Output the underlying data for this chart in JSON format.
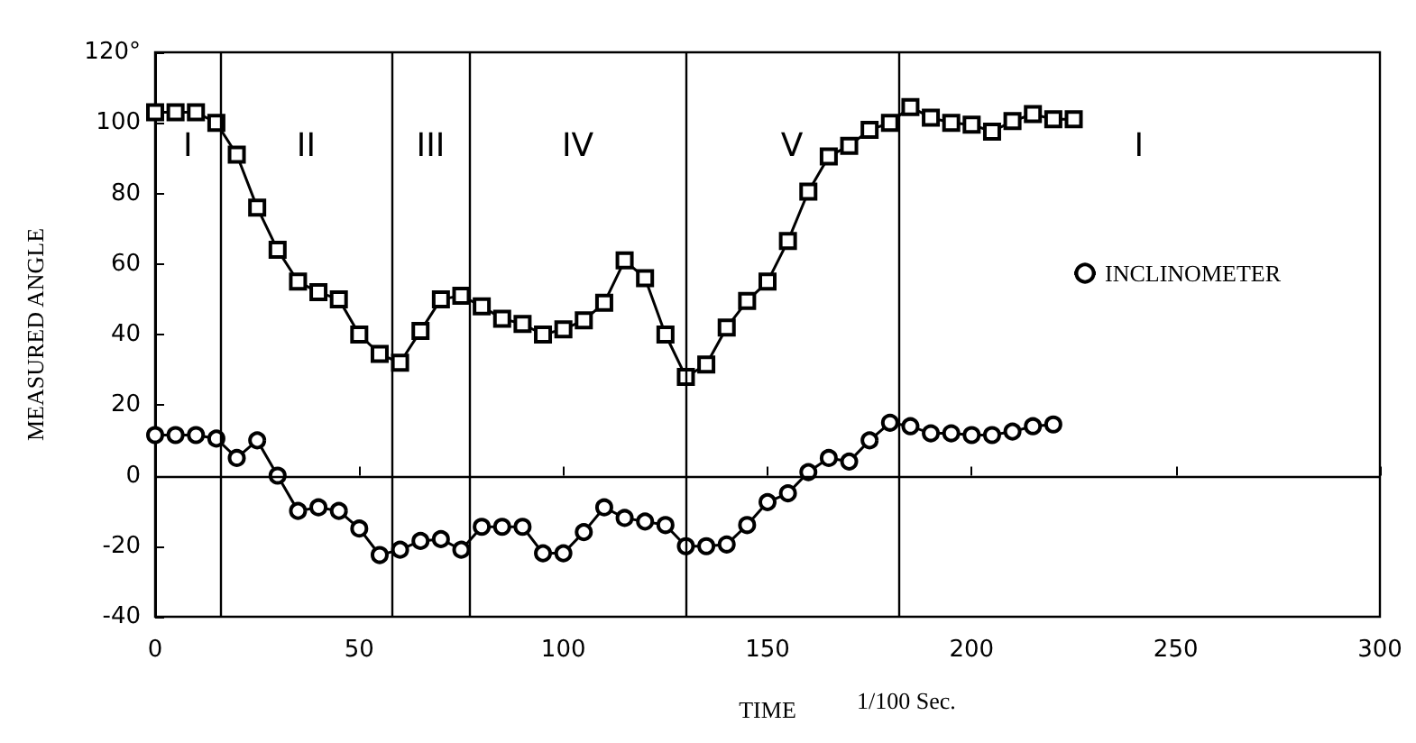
{
  "chart_data": {
    "type": "line",
    "xlabel": "TIME",
    "ylabel": "MEASURED ANGLE",
    "annotations": [
      "1/100 Sec.",
      "I",
      "II",
      "III",
      "IV",
      "V",
      "I"
    ],
    "series": [
      {
        "name": "INCLINOMETER",
        "color": "#000000",
        "marker": "circle",
        "x": [
          0,
          5,
          10,
          15,
          20,
          25,
          30,
          35,
          40,
          45,
          50,
          55,
          60,
          65,
          70,
          75,
          80,
          85,
          90,
          95,
          100,
          105,
          110,
          115,
          120,
          125,
          130,
          135,
          140,
          145,
          150,
          155,
          160,
          165,
          170,
          175,
          180,
          185,
          190,
          195,
          200,
          205,
          210,
          215,
          220
        ],
        "values": [
          11.5,
          11.5,
          11.5,
          10.5,
          5,
          10,
          0,
          -10,
          -9,
          -10,
          -15,
          -22.5,
          -21,
          -18.5,
          -18,
          -21,
          -14.5,
          -14.5,
          -14.5,
          -22,
          -22,
          -16,
          -9,
          -12,
          -13,
          -14,
          -20,
          -20,
          -19.5,
          -14,
          -7.5,
          -5,
          1,
          5,
          4,
          10,
          15,
          14,
          12,
          12,
          11.5,
          11.5,
          12.5,
          14,
          14.5
        ]
      },
      {
        "color": "#000000",
        "marker": "square",
        "x": [
          0,
          5,
          10,
          15,
          20,
          25,
          30,
          35,
          40,
          45,
          50,
          55,
          60,
          65,
          70,
          75,
          80,
          85,
          90,
          95,
          100,
          105,
          110,
          115,
          120,
          125,
          130,
          135,
          140,
          145,
          150,
          155,
          160,
          165,
          170,
          175,
          180,
          185,
          190,
          195,
          200,
          205,
          210,
          215,
          220,
          225
        ],
        "values": [
          103,
          103,
          103,
          100,
          91,
          76,
          64,
          55,
          52,
          50,
          40,
          34.5,
          32,
          41,
          50,
          51,
          48,
          44.5,
          43,
          40,
          41.5,
          44,
          49,
          61,
          56,
          40,
          28,
          31.5,
          42,
          49.5,
          55,
          66.5,
          80.5,
          90.5,
          93.5,
          98,
          100,
          104.5,
          101.5,
          100,
          99.5,
          97.5,
          100.5,
          102.5,
          101,
          101
        ]
      }
    ],
    "xlim": [
      0,
      300
    ],
    "xticks": [
      0,
      50,
      100,
      150,
      200,
      250,
      300
    ],
    "ylim": [
      -40,
      120
    ],
    "yticks": [
      -40,
      -20,
      0,
      20,
      40,
      60,
      80,
      100,
      {
        "value": 120,
        "label": "120°"
      }
    ],
    "ref_lines": [
      {
        "axis": "y",
        "value": 0
      },
      {
        "axis": "x",
        "value": 16
      },
      {
        "axis": "x",
        "value": 58
      },
      {
        "axis": "x",
        "value": 77
      },
      {
        "axis": "x",
        "value": 130
      },
      {
        "axis": "x",
        "value": 182
      }
    ],
    "grid": false,
    "legend": "right"
  }
}
